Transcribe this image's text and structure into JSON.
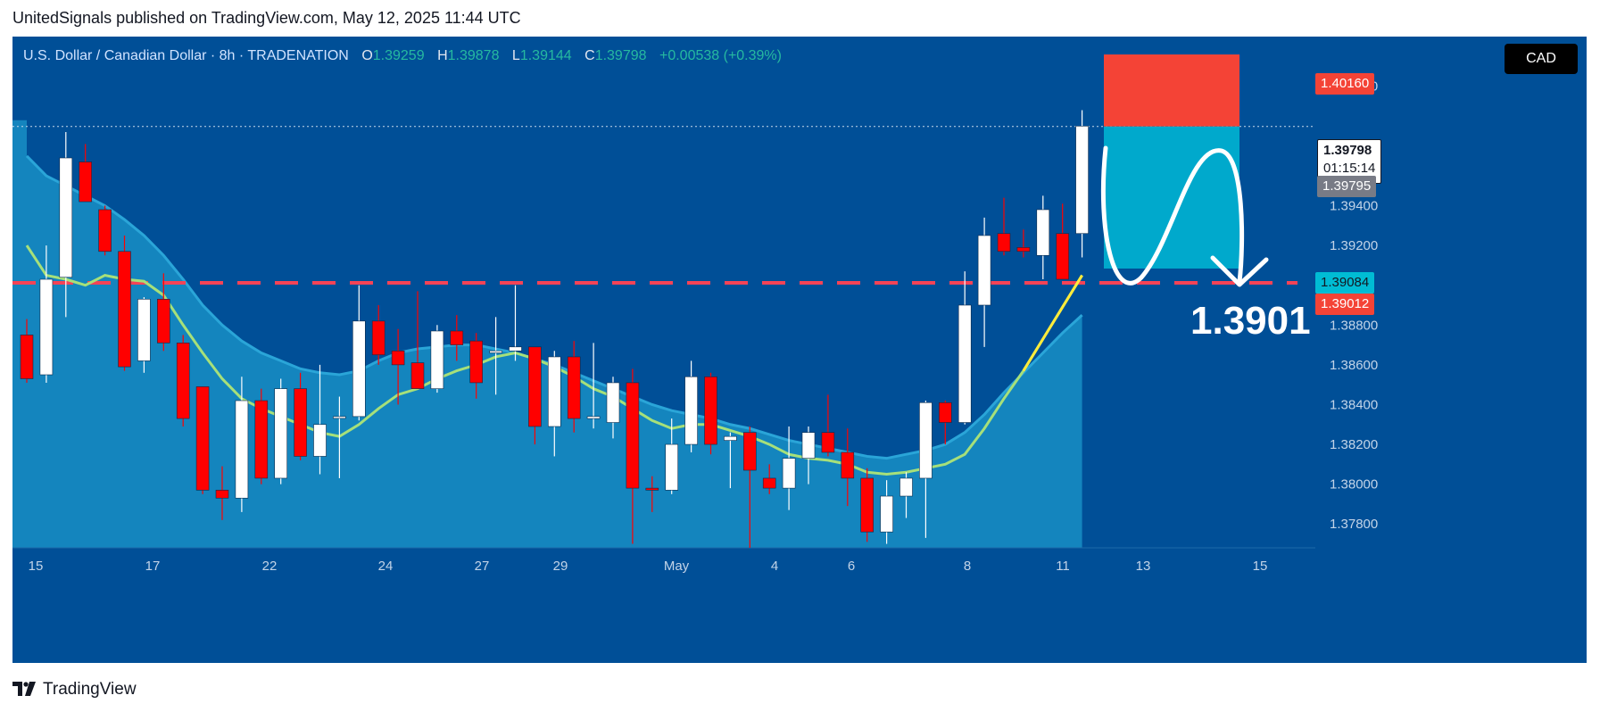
{
  "header": {
    "text": "UnitedSignals published on TradingView.com, May 12, 2025 11:44 UTC"
  },
  "symbol": {
    "name": "U.S. Dollar / Canadian Dollar · 8h · TRADENATION",
    "open_label": "O",
    "open": "1.39259",
    "high_label": "H",
    "high": "1.39878",
    "low_label": "L",
    "low": "1.39144",
    "close_label": "C",
    "close": "1.39798",
    "change": "+0.00538 (+0.39%)"
  },
  "currency": "CAD",
  "colors": {
    "background": "#004f97",
    "up_candle": "#ffffff",
    "down_candle": "#ff0000",
    "ma_line": "#a6e07a",
    "ma_recent": "#ffeb3b",
    "band_fill": "#1588c0",
    "stop_zone": "#f44336",
    "target_zone": "#00a9cc",
    "support_line": "#f44356"
  },
  "price_tags": {
    "stop": "1.40160",
    "last": "1.39798",
    "countdown": "01:15:14",
    "prev": "1.39795",
    "target_tag": "1.39084",
    "support_tag": "1.39012"
  },
  "annotation": {
    "target_text": "1.3901"
  },
  "footer": {
    "brand": "TradingView"
  },
  "chart_data": {
    "type": "candlestick",
    "timeframe": "8h",
    "ylim": [
      1.3768,
      1.4025
    ],
    "y_ticks": [
      "1.40000",
      "1.39400",
      "1.39200",
      "1.38800",
      "1.38600",
      "1.38400",
      "1.38200",
      "1.38000",
      "1.37800"
    ],
    "x_labels": [
      "15",
      "17",
      "22",
      "24",
      "27",
      "29",
      "May",
      "4",
      "6",
      "8",
      "11",
      "13",
      "15"
    ],
    "candles": [
      {
        "o": 1.3875,
        "h": 1.3883,
        "l": 1.3851,
        "c": 1.3853
      },
      {
        "o": 1.3855,
        "h": 1.392,
        "l": 1.3851,
        "c": 1.3903
      },
      {
        "o": 1.3904,
        "h": 1.3977,
        "l": 1.3884,
        "c": 1.3964
      },
      {
        "o": 1.3962,
        "h": 1.3971,
        "l": 1.3942,
        "c": 1.3942
      },
      {
        "o": 1.3938,
        "h": 1.394,
        "l": 1.3915,
        "c": 1.3917
      },
      {
        "o": 1.3917,
        "h": 1.3925,
        "l": 1.3857,
        "c": 1.3859
      },
      {
        "o": 1.3862,
        "h": 1.3894,
        "l": 1.3856,
        "c": 1.3893
      },
      {
        "o": 1.3893,
        "h": 1.3906,
        "l": 1.3867,
        "c": 1.3871
      },
      {
        "o": 1.3871,
        "h": 1.3875,
        "l": 1.3829,
        "c": 1.3833
      },
      {
        "o": 1.3849,
        "h": 1.3849,
        "l": 1.3795,
        "c": 1.3797
      },
      {
        "o": 1.3797,
        "h": 1.3809,
        "l": 1.3782,
        "c": 1.3793
      },
      {
        "o": 1.3793,
        "h": 1.3854,
        "l": 1.3786,
        "c": 1.3842
      },
      {
        "o": 1.3842,
        "h": 1.3848,
        "l": 1.38,
        "c": 1.3803
      },
      {
        "o": 1.3803,
        "h": 1.3853,
        "l": 1.38,
        "c": 1.3848
      },
      {
        "o": 1.3848,
        "h": 1.3856,
        "l": 1.3812,
        "c": 1.3814
      },
      {
        "o": 1.3814,
        "h": 1.386,
        "l": 1.3805,
        "c": 1.383
      },
      {
        "o": 1.3834,
        "h": 1.3844,
        "l": 1.3803,
        "c": 1.3834
      },
      {
        "o": 1.3834,
        "h": 1.39,
        "l": 1.3832,
        "c": 1.3882
      },
      {
        "o": 1.3882,
        "h": 1.389,
        "l": 1.386,
        "c": 1.3865
      },
      {
        "o": 1.3867,
        "h": 1.3878,
        "l": 1.384,
        "c": 1.386
      },
      {
        "o": 1.3861,
        "h": 1.3897,
        "l": 1.385,
        "c": 1.3848
      },
      {
        "o": 1.3848,
        "h": 1.388,
        "l": 1.3846,
        "c": 1.3877
      },
      {
        "o": 1.3877,
        "h": 1.3885,
        "l": 1.3862,
        "c": 1.387
      },
      {
        "o": 1.3872,
        "h": 1.3876,
        "l": 1.3843,
        "c": 1.3851
      },
      {
        "o": 1.3866,
        "h": 1.3884,
        "l": 1.3845,
        "c": 1.3867
      },
      {
        "o": 1.3867,
        "h": 1.39,
        "l": 1.3862,
        "c": 1.3869
      },
      {
        "o": 1.3869,
        "h": 1.3868,
        "l": 1.382,
        "c": 1.3829
      },
      {
        "o": 1.3829,
        "h": 1.3867,
        "l": 1.3814,
        "c": 1.3864
      },
      {
        "o": 1.3864,
        "h": 1.3872,
        "l": 1.3826,
        "c": 1.3833
      },
      {
        "o": 1.3833,
        "h": 1.3871,
        "l": 1.3828,
        "c": 1.3834
      },
      {
        "o": 1.3831,
        "h": 1.3854,
        "l": 1.3823,
        "c": 1.3851
      },
      {
        "o": 1.3851,
        "h": 1.3858,
        "l": 1.377,
        "c": 1.3798
      },
      {
        "o": 1.3798,
        "h": 1.3804,
        "l": 1.3786,
        "c": 1.3797
      },
      {
        "o": 1.3797,
        "h": 1.3833,
        "l": 1.3795,
        "c": 1.382
      },
      {
        "o": 1.382,
        "h": 1.3862,
        "l": 1.3816,
        "c": 1.3854
      },
      {
        "o": 1.3854,
        "h": 1.3856,
        "l": 1.3815,
        "c": 1.382
      },
      {
        "o": 1.3822,
        "h": 1.3826,
        "l": 1.3798,
        "c": 1.3824
      },
      {
        "o": 1.3826,
        "h": 1.3829,
        "l": 1.3768,
        "c": 1.3807
      },
      {
        "o": 1.3803,
        "h": 1.381,
        "l": 1.3795,
        "c": 1.3798
      },
      {
        "o": 1.3798,
        "h": 1.3829,
        "l": 1.3787,
        "c": 1.3813
      },
      {
        "o": 1.3813,
        "h": 1.3829,
        "l": 1.38,
        "c": 1.3826
      },
      {
        "o": 1.3826,
        "h": 1.3845,
        "l": 1.3814,
        "c": 1.3816
      },
      {
        "o": 1.3816,
        "h": 1.3828,
        "l": 1.3789,
        "c": 1.3803
      },
      {
        "o": 1.3803,
        "h": 1.3808,
        "l": 1.3771,
        "c": 1.3776
      },
      {
        "o": 1.3776,
        "h": 1.3802,
        "l": 1.377,
        "c": 1.3794
      },
      {
        "o": 1.3794,
        "h": 1.3806,
        "l": 1.3783,
        "c": 1.3803
      },
      {
        "o": 1.3803,
        "h": 1.3842,
        "l": 1.3773,
        "c": 1.3841
      },
      {
        "o": 1.3841,
        "h": 1.3842,
        "l": 1.382,
        "c": 1.3831
      },
      {
        "o": 1.3831,
        "h": 1.3907,
        "l": 1.383,
        "c": 1.389
      },
      {
        "o": 1.389,
        "h": 1.3934,
        "l": 1.3869,
        "c": 1.3925
      },
      {
        "o": 1.3926,
        "h": 1.3944,
        "l": 1.3915,
        "c": 1.3917
      },
      {
        "o": 1.3919,
        "h": 1.3928,
        "l": 1.3914,
        "c": 1.3917
      },
      {
        "o": 1.3915,
        "h": 1.3945,
        "l": 1.3903,
        "c": 1.3938
      },
      {
        "o": 1.3926,
        "h": 1.3941,
        "l": 1.3903,
        "c": 1.3903
      },
      {
        "o": 1.3926,
        "h": 1.3988,
        "l": 1.3914,
        "c": 1.398
      }
    ],
    "ma": [
      1.392,
      1.3905,
      1.3903,
      1.39,
      1.3905,
      1.3903,
      1.3902,
      1.3895,
      1.388,
      1.3866,
      1.3853,
      1.3843,
      1.3838,
      1.3834,
      1.383,
      1.3826,
      1.3824,
      1.383,
      1.3838,
      1.3845,
      1.3848,
      1.3853,
      1.3857,
      1.386,
      1.3864,
      1.3866,
      1.3863,
      1.3859,
      1.3854,
      1.3848,
      1.3844,
      1.3838,
      1.3832,
      1.3828,
      1.383,
      1.383,
      1.3827,
      1.3824,
      1.382,
      1.3815,
      1.3813,
      1.3812,
      1.381,
      1.3806,
      1.3805,
      1.3806,
      1.3808,
      1.381,
      1.3815,
      1.3828,
      1.3843,
      1.3857,
      1.3873,
      1.3889,
      1.3905
    ],
    "band_upper": [
      1.3965,
      1.3955,
      1.395,
      1.3945,
      1.394,
      1.3933,
      1.3925,
      1.3915,
      1.3903,
      1.389,
      1.388,
      1.3872,
      1.3866,
      1.3862,
      1.3858,
      1.3856,
      1.3855,
      1.3857,
      1.3862,
      1.3866,
      1.3868,
      1.3869,
      1.387,
      1.387,
      1.3868,
      1.3866,
      1.3863,
      1.386,
      1.3856,
      1.3852,
      1.3848,
      1.3844,
      1.384,
      1.3837,
      1.3835,
      1.3833,
      1.383,
      1.3828,
      1.3825,
      1.3822,
      1.382,
      1.3818,
      1.3816,
      1.3814,
      1.3813,
      1.3815,
      1.3817,
      1.382,
      1.3826,
      1.3835,
      1.3846,
      1.3856,
      1.3866,
      1.3876,
      1.3885
    ],
    "trade_setup": {
      "entry": 1.39798,
      "stop": 1.4016,
      "target_zone_low": 1.39084,
      "support_level": 1.39012
    }
  }
}
